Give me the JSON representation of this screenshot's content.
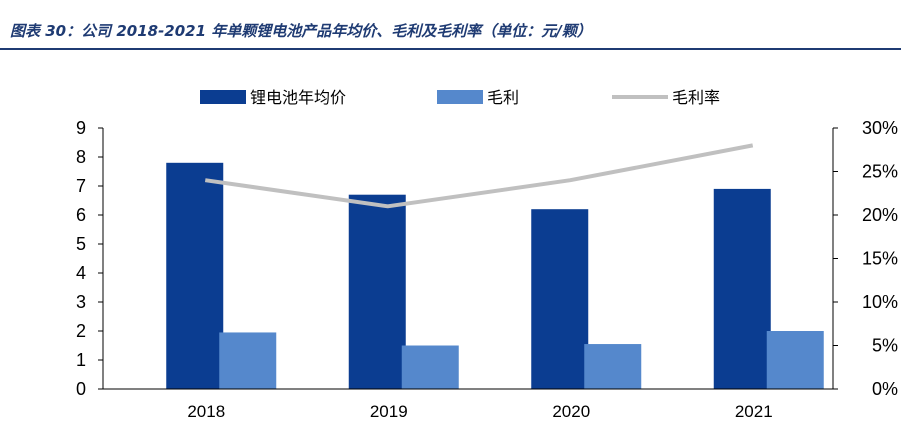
{
  "figure": {
    "title": "图表 30：公司 2018-2021 年单颗锂电池产品年均价、毛利及毛利率（单位：元/颗）"
  },
  "chart_data": {
    "type": "bar",
    "categories": [
      "2018",
      "2019",
      "2020",
      "2021"
    ],
    "series": [
      {
        "name": "锂电池年均价",
        "kind": "bar",
        "axis": "left",
        "color": "#0b3d91",
        "values": [
          7.8,
          6.7,
          6.2,
          6.9
        ]
      },
      {
        "name": "毛利",
        "kind": "bar",
        "axis": "left",
        "color": "#5588cc",
        "values": [
          1.95,
          1.5,
          1.55,
          2.0
        ]
      },
      {
        "name": "毛利率",
        "kind": "line",
        "axis": "right",
        "color": "#c0c0c0",
        "values": [
          0.24,
          0.21,
          0.24,
          0.28
        ]
      }
    ],
    "ylim_left": [
      0,
      9
    ],
    "yticks_left": [
      "0",
      "1",
      "2",
      "3",
      "4",
      "5",
      "6",
      "7",
      "8",
      "9"
    ],
    "ylim_right": [
      0,
      0.3
    ],
    "yticks_right": [
      "0%",
      "5%",
      "10%",
      "15%",
      "20%",
      "25%",
      "30%"
    ],
    "legend": {
      "position": "top"
    },
    "grid": false
  }
}
